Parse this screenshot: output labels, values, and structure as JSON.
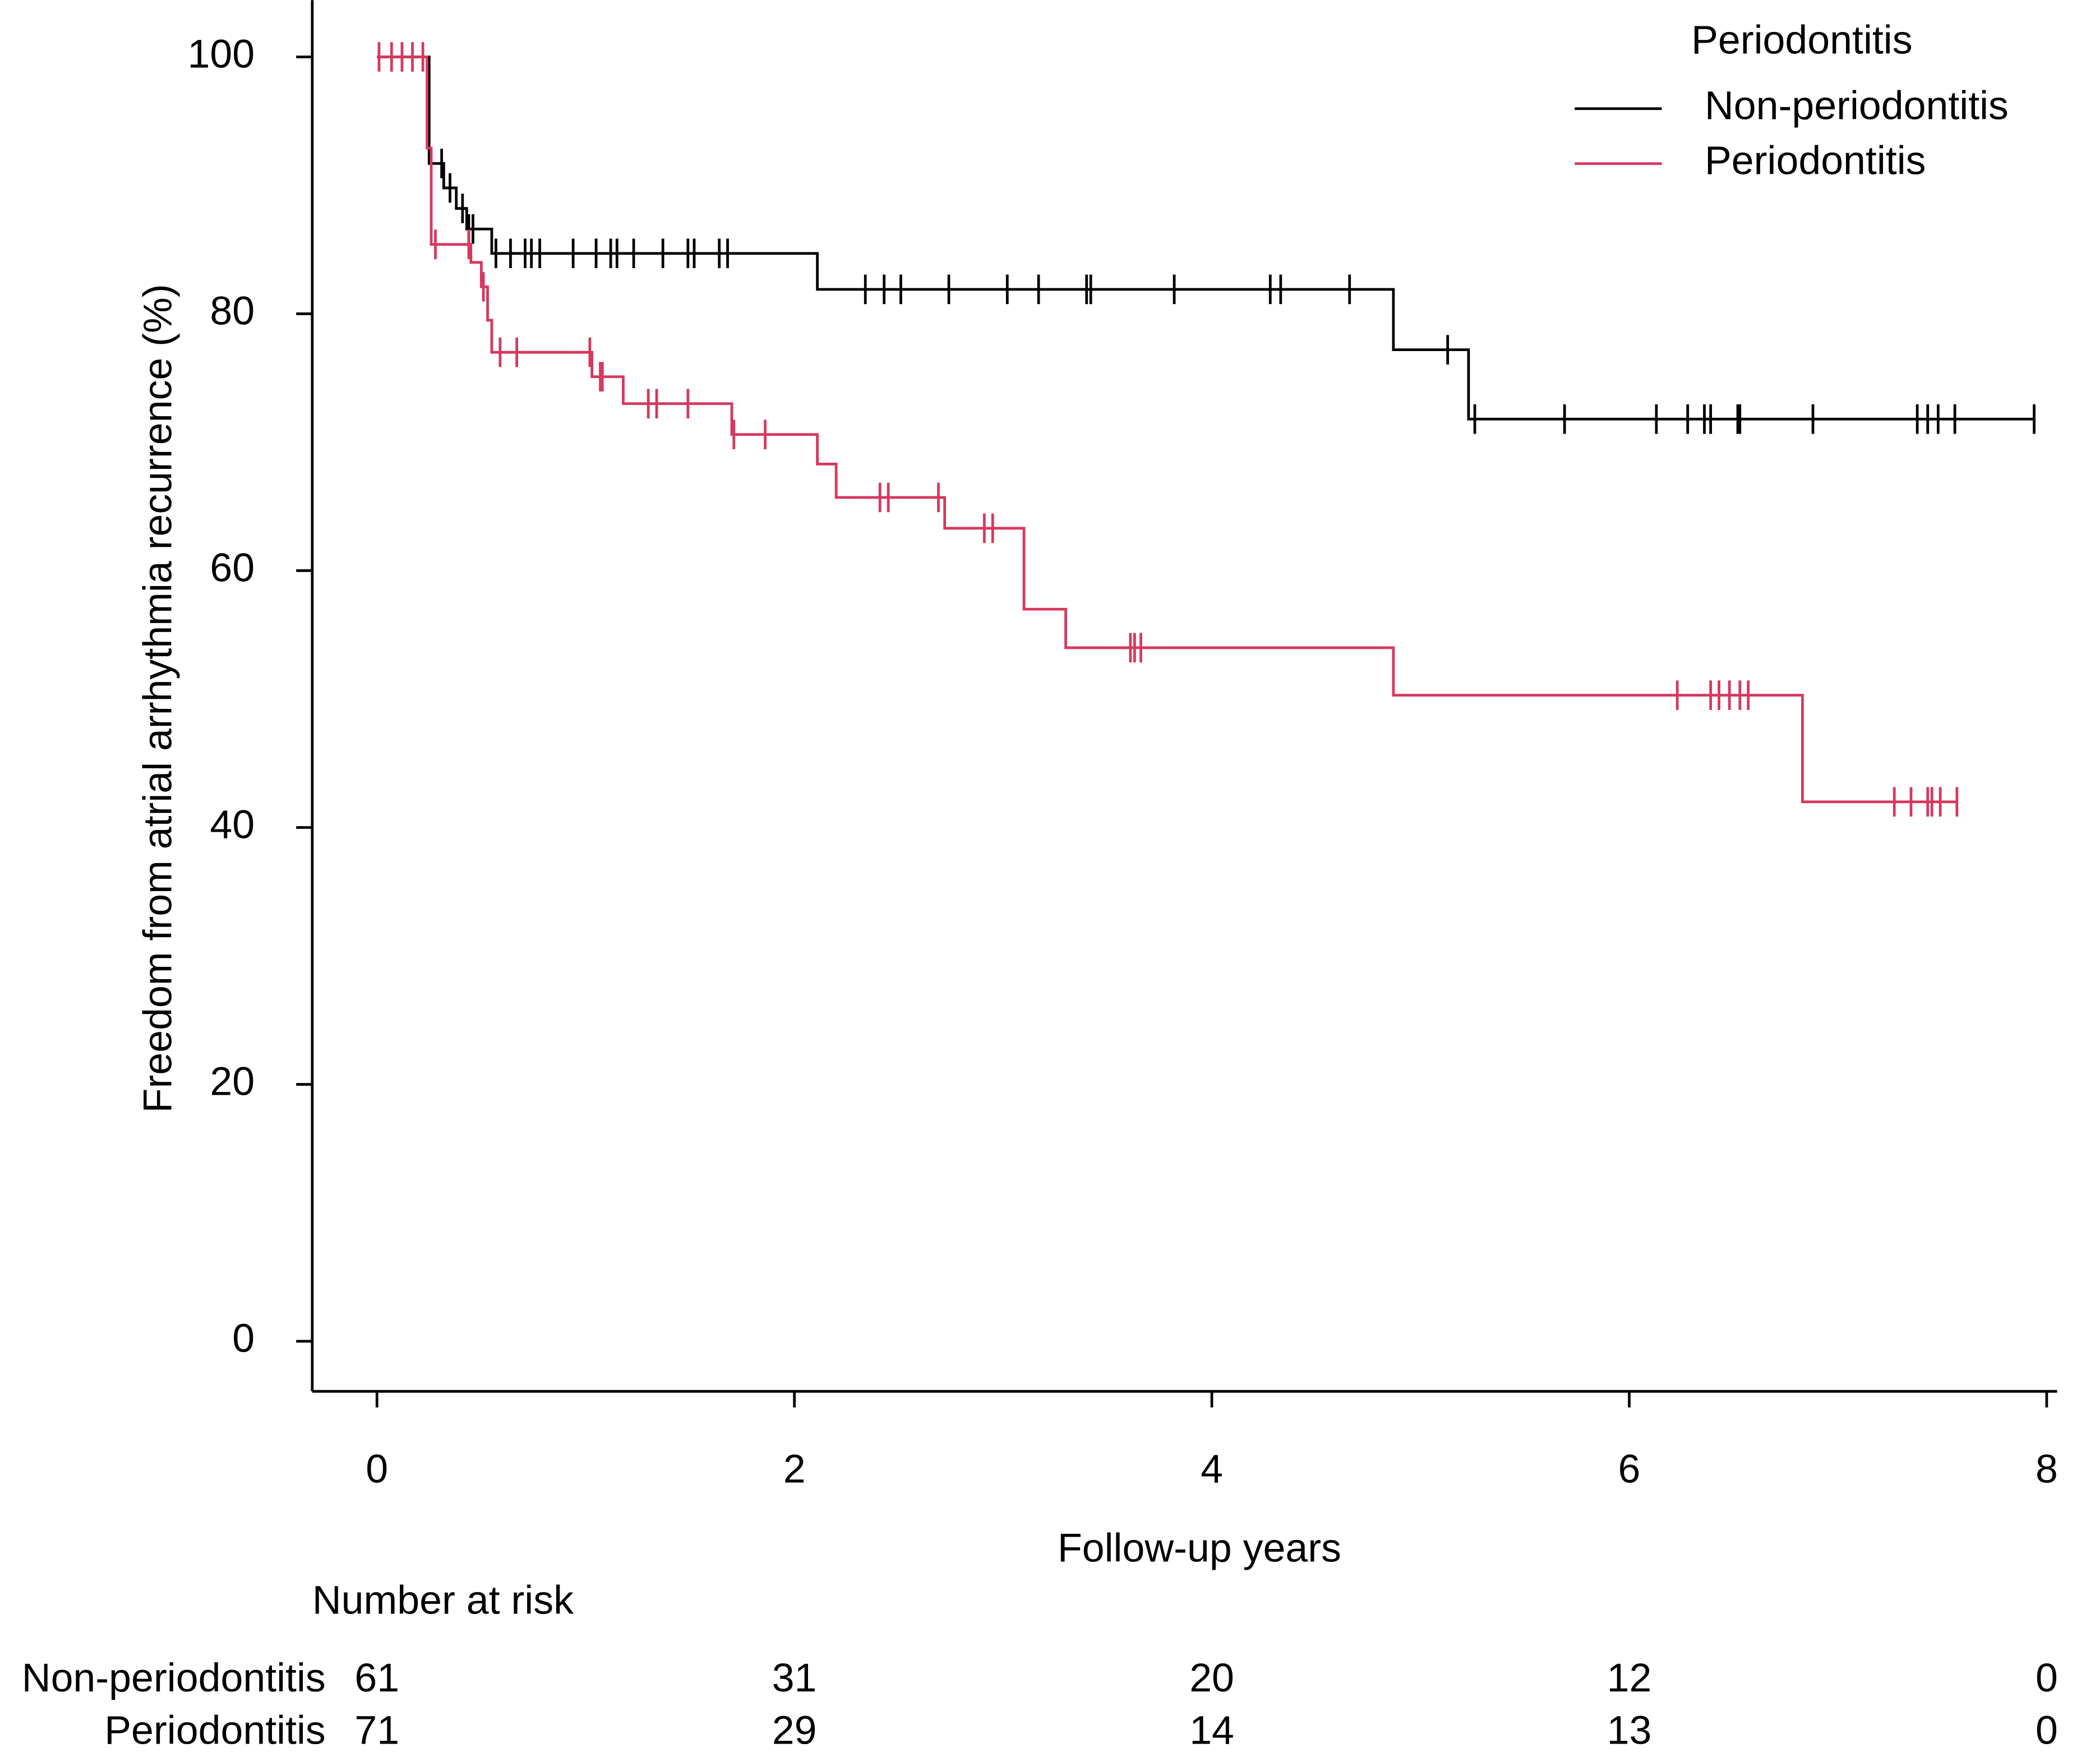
{
  "chart_data": {
    "type": "kaplan-meier",
    "xlabel": "Follow-up years",
    "ylabel": "Freedom from atrial arrhythmia recurrence (%)",
    "xlim": [
      -0.31,
      8.05
    ],
    "ylim": [
      -3.9,
      103.9
    ],
    "xticks": [
      0,
      2,
      4,
      6,
      8
    ],
    "yticks": [
      0,
      20,
      40,
      60,
      80,
      100
    ],
    "legend_title": "Periodontitis",
    "legend": "top-right",
    "series": [
      {
        "name": "Non-periodontitis",
        "color": "#000000",
        "x": [
          0,
          0.25,
          0.32,
          0.38,
          0.43,
          0.55,
          2.11,
          4.87,
          5.23
        ],
        "values": [
          100,
          91.7,
          89.8,
          88.2,
          86.6,
          84.7,
          81.9,
          77.2,
          71.8
        ],
        "censored": [
          0.31,
          0.35,
          0.41,
          0.44,
          0.46,
          0.57,
          0.64,
          0.71,
          0.74,
          0.78,
          0.94,
          1.05,
          1.12,
          1.15,
          1.23,
          1.37,
          1.49,
          1.52,
          1.64,
          1.68,
          2.34,
          2.43,
          2.51,
          2.74,
          3.02,
          3.17,
          3.4,
          3.42,
          3.82,
          4.28,
          4.33,
          4.66,
          5.13,
          5.26,
          5.69,
          6.13,
          6.28,
          6.36,
          6.39,
          6.52,
          6.53,
          6.88,
          7.38,
          7.43,
          7.48,
          7.56,
          7.94
        ],
        "at_risk": [
          61,
          31,
          20,
          12,
          0
        ]
      },
      {
        "name": "Periodontitis",
        "color": "#d6385e",
        "x": [
          0,
          0.24,
          0.26,
          0.45,
          0.5,
          0.53,
          0.55,
          1.03,
          1.18,
          1.7,
          2.11,
          2.2,
          2.72,
          3.1,
          3.3,
          4.87,
          6.83
        ],
        "values": [
          100,
          92.9,
          85.4,
          84.0,
          82.1,
          79.5,
          77.0,
          75.1,
          73.0,
          70.6,
          68.3,
          65.7,
          63.3,
          57.0,
          54.0,
          50.3,
          42.0
        ],
        "censored": [
          0.01,
          0.07,
          0.12,
          0.17,
          0.22,
          0.28,
          0.44,
          0.51,
          0.59,
          0.67,
          1.02,
          1.07,
          1.08,
          1.3,
          1.34,
          1.49,
          1.71,
          1.86,
          2.41,
          2.45,
          2.69,
          2.91,
          2.95,
          3.61,
          3.63,
          3.66,
          6.23,
          6.39,
          6.43,
          6.48,
          6.53,
          6.57,
          7.27,
          7.35,
          7.43,
          7.45,
          7.49,
          7.57
        ],
        "at_risk": [
          71,
          29,
          14,
          13,
          0
        ]
      }
    ],
    "risk_table_title": "Number at risk"
  }
}
